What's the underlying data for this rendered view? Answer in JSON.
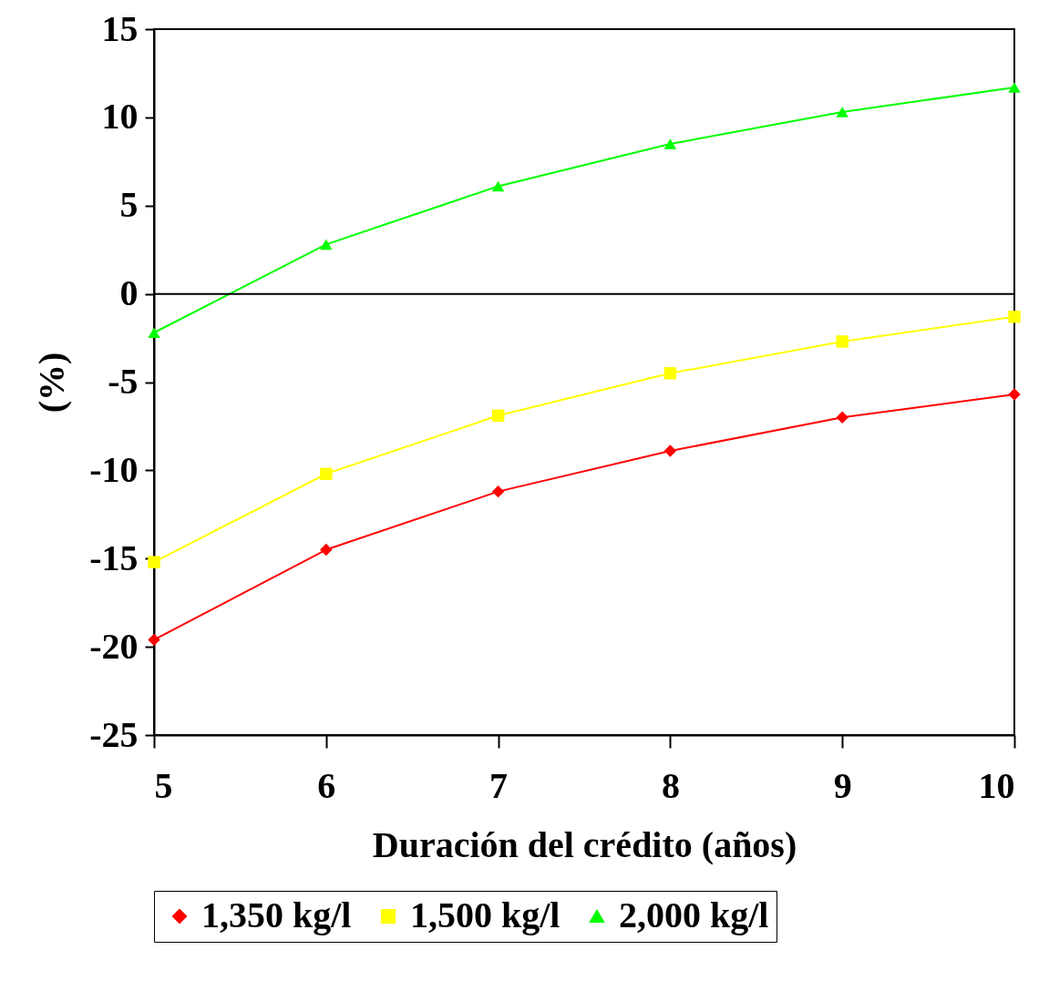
{
  "chart_data": {
    "type": "line",
    "xlabel": "Duración del crédito (años)",
    "ylabel": "(%)",
    "x": [
      5,
      6,
      7,
      8,
      9,
      10
    ],
    "series": [
      {
        "name": "1,350 kg/l",
        "color": "#ff0000",
        "marker": "diamond",
        "values": [
          -19.6,
          -14.5,
          -11.2,
          -8.9,
          -7.0,
          -5.7
        ]
      },
      {
        "name": "1,500 kg/l",
        "color": "#ffff00",
        "marker": "square",
        "values": [
          -15.2,
          -10.2,
          -6.9,
          -4.5,
          -2.7,
          -1.3
        ]
      },
      {
        "name": "2,000 kg/l",
        "color": "#00ff00",
        "marker": "triangle",
        "values": [
          -2.2,
          2.8,
          6.1,
          8.5,
          10.3,
          11.7
        ]
      }
    ],
    "xlim": [
      5,
      10
    ],
    "xticks": [
      5,
      6,
      7,
      8,
      9,
      10
    ],
    "ylim": [
      -25,
      15
    ],
    "yticks": [
      -25,
      -20,
      -15,
      -10,
      -5,
      0,
      5,
      10,
      15
    ],
    "ref_lines": [
      {
        "axis": "y",
        "value": 0,
        "color": "#000000"
      }
    ],
    "grid": false,
    "legend": "bottom"
  }
}
